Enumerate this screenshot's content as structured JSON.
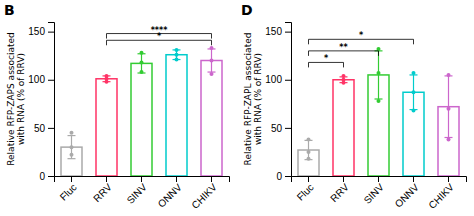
{
  "chart_data": [
    {
      "type": "bar",
      "title": "B",
      "y_label": "Relative RFP-ZAPS associated\nwith RNA (% of RRV)",
      "categories": [
        "Fluc",
        "RRV",
        "SINV",
        "ONNV",
        "CHIKV"
      ],
      "values": [
        30,
        101,
        117,
        126,
        120
      ],
      "errors": [
        12,
        3,
        10,
        5,
        12
      ],
      "colors": [
        "#aaaaaa",
        "#ff3366",
        "#33cc33",
        "#00cccc",
        "#cc66cc"
      ],
      "dots": [
        [
          22,
          30,
          45
        ],
        [
          98,
          101,
          104
        ],
        [
          108,
          118,
          128
        ],
        [
          121,
          126,
          131
        ],
        [
          106,
          120,
          133
        ]
      ],
      "ylim": [
        0,
        160
      ],
      "yticks": [
        0,
        50,
        100,
        150
      ],
      "annotations": [
        {
          "from": "RRV",
          "to": "CHIKV",
          "y": 148,
          "label": "****"
        },
        {
          "from": "RRV",
          "to": "CHIKV",
          "y": 141,
          "label": "*"
        }
      ]
    },
    {
      "type": "bar",
      "title": "D",
      "y_label": "Relative RFP-ZAPL associated\nwith RNA (% of RRV)",
      "categories": [
        "Fluc",
        "RRV",
        "SINV",
        "ONNV",
        "CHIKV"
      ],
      "values": [
        27,
        100,
        105,
        87,
        72
      ],
      "errors": [
        10,
        3,
        25,
        18,
        32
      ],
      "colors": [
        "#aaaaaa",
        "#ff3366",
        "#33cc33",
        "#00cccc",
        "#cc66cc"
      ],
      "dots": [
        [
          18,
          25,
          38
        ],
        [
          97,
          100,
          104
        ],
        [
          78,
          107,
          132
        ],
        [
          68,
          87,
          107
        ],
        [
          38,
          70,
          105
        ]
      ],
      "ylim": [
        0,
        160
      ],
      "yticks": [
        0,
        50,
        100,
        150
      ],
      "annotations": [
        {
          "from": "Fluc",
          "to": "RRV",
          "y": 118,
          "label": "*"
        },
        {
          "from": "Fluc",
          "to": "SINV",
          "y": 130,
          "label": "**"
        },
        {
          "from": "Fluc",
          "to": "ONNV",
          "y": 142,
          "label": "*"
        }
      ]
    }
  ]
}
